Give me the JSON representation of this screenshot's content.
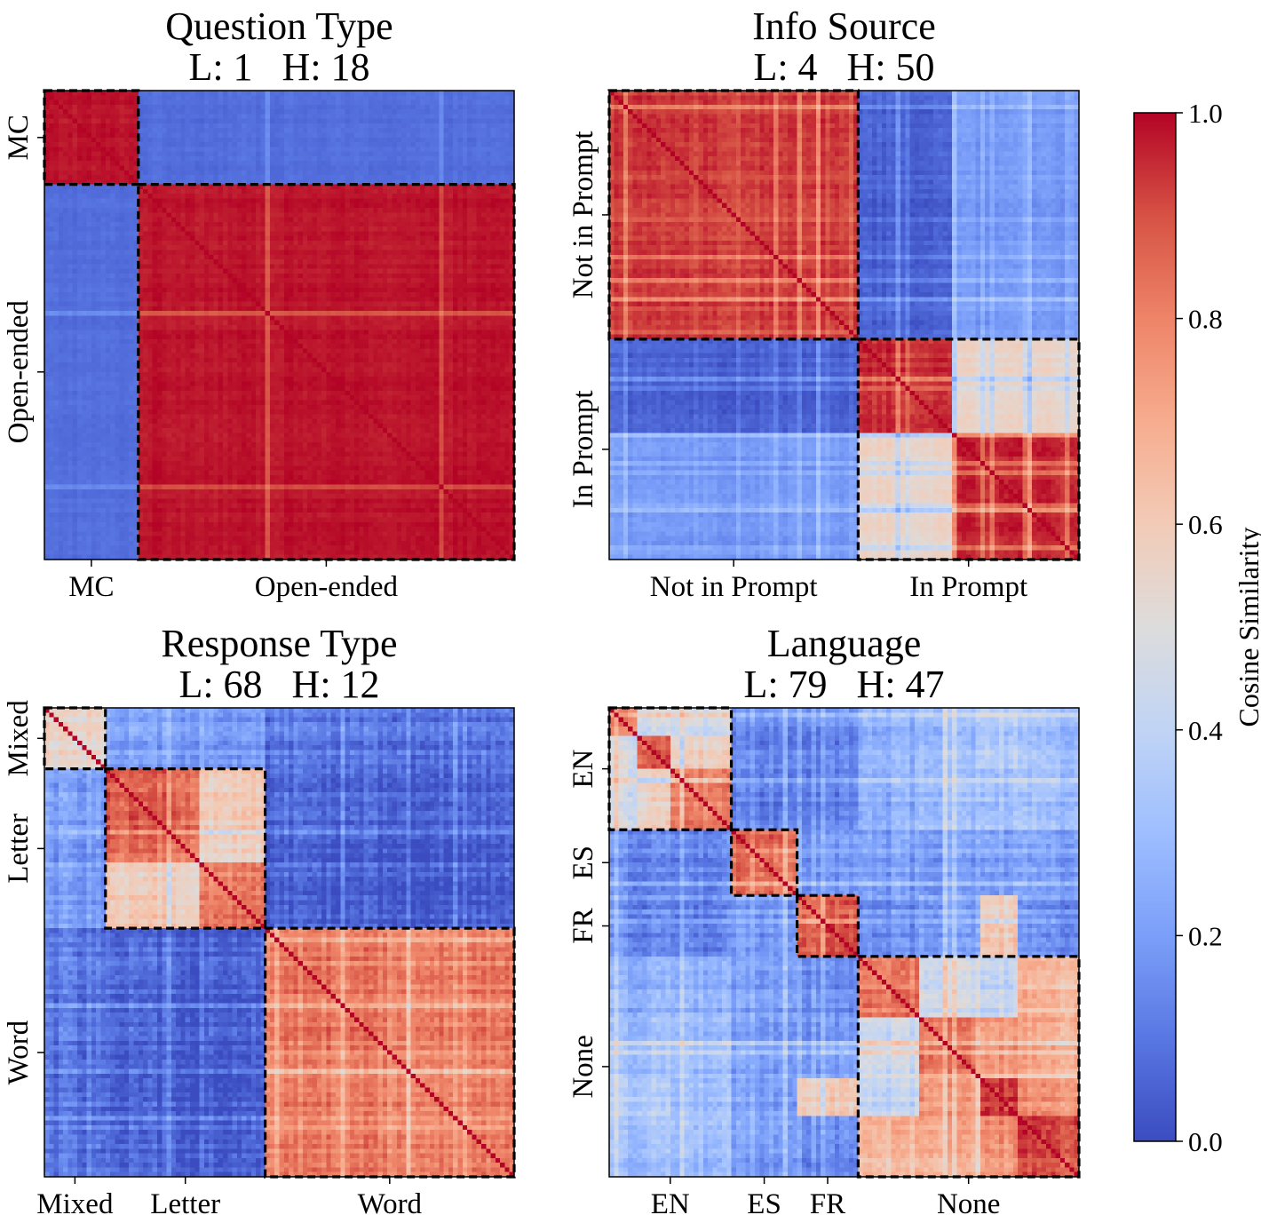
{
  "colorscale": {
    "name": "coolwarm",
    "label": "Cosine Similarity",
    "range": [
      0.0,
      1.0
    ],
    "ticks": [
      "0.0",
      "0.2",
      "0.4",
      "0.6",
      "0.8",
      "1.0"
    ],
    "stops": [
      "#3b4cc0",
      "#5977e3",
      "#7b9ff9",
      "#9ebeff",
      "#c0d4f5",
      "#dddcdc",
      "#f2cbb7",
      "#f7ac8e",
      "#ee8468",
      "#d65244",
      "#b40426"
    ]
  },
  "chart_data": [
    {
      "type": "heatmap",
      "title": "Question Type",
      "subtitle": "L: 1   H: 18",
      "groups": [
        "MC",
        "Open-ended"
      ],
      "group_sizes": [
        20,
        80
      ],
      "noise": 0.02,
      "stripe_rate": 0.05,
      "block_values": [
        [
          0.98,
          0.08
        ],
        [
          0.08,
          0.98
        ]
      ]
    },
    {
      "type": "heatmap",
      "title": "Info Source",
      "subtitle": "L: 4   H: 50",
      "groups": [
        "Not in Prompt",
        "In Prompt"
      ],
      "group_sizes": [
        53,
        47
      ],
      "subgroup_sizes": [
        [
          53
        ],
        [
          20,
          27
        ]
      ],
      "noise": 0.04,
      "stripe_rate": 0.25,
      "block_values": [
        [
          0.93,
          0.05,
          0.18
        ],
        [
          0.05,
          0.95,
          0.55
        ],
        [
          0.18,
          0.55,
          0.95
        ]
      ]
    },
    {
      "type": "heatmap",
      "title": "Response Type",
      "subtitle": "L: 68   H: 12",
      "groups": [
        "Mixed",
        "Letter",
        "Word"
      ],
      "group_sizes": [
        13,
        34,
        53
      ],
      "subgroup_sizes": [
        [
          13
        ],
        [
          20,
          14
        ],
        [
          53
        ]
      ],
      "noise": 0.08,
      "stripe_rate": 0.2,
      "block_values": [
        [
          0.55,
          0.2,
          0.2,
          0.1
        ],
        [
          0.2,
          0.85,
          0.6,
          0.05
        ],
        [
          0.2,
          0.6,
          0.85,
          0.05
        ],
        [
          0.1,
          0.05,
          0.05,
          0.82
        ]
      ]
    },
    {
      "type": "heatmap",
      "title": "Language",
      "subtitle": "L: 79   H: 47",
      "groups": [
        "EN",
        "ES",
        "FR",
        "None"
      ],
      "group_sizes": [
        26,
        14,
        13,
        47
      ],
      "subgroup_sizes": [
        [
          6,
          7,
          13
        ],
        [
          14
        ],
        [
          13
        ],
        [
          13,
          13,
          8,
          13
        ]
      ],
      "noise": 0.08,
      "stripe_rate": 0.15,
      "block_values": [
        [
          0.8,
          0.45,
          0.45,
          0.15,
          0.15,
          0.25,
          0.3,
          0.35,
          0.3
        ],
        [
          0.45,
          0.85,
          0.55,
          0.12,
          0.12,
          0.25,
          0.3,
          0.35,
          0.3
        ],
        [
          0.45,
          0.55,
          0.8,
          0.12,
          0.12,
          0.25,
          0.3,
          0.3,
          0.3
        ],
        [
          0.15,
          0.12,
          0.12,
          0.85,
          0.18,
          0.2,
          0.2,
          0.2,
          0.2
        ],
        [
          0.15,
          0.12,
          0.12,
          0.18,
          0.9,
          0.15,
          0.2,
          0.6,
          0.15
        ],
        [
          0.25,
          0.25,
          0.25,
          0.2,
          0.15,
          0.8,
          0.45,
          0.4,
          0.65
        ],
        [
          0.3,
          0.3,
          0.3,
          0.2,
          0.2,
          0.45,
          0.85,
          0.75,
          0.7
        ],
        [
          0.35,
          0.35,
          0.3,
          0.2,
          0.6,
          0.4,
          0.75,
          0.92,
          0.75
        ],
        [
          0.3,
          0.3,
          0.3,
          0.2,
          0.15,
          0.65,
          0.7,
          0.75,
          0.9
        ]
      ]
    }
  ]
}
